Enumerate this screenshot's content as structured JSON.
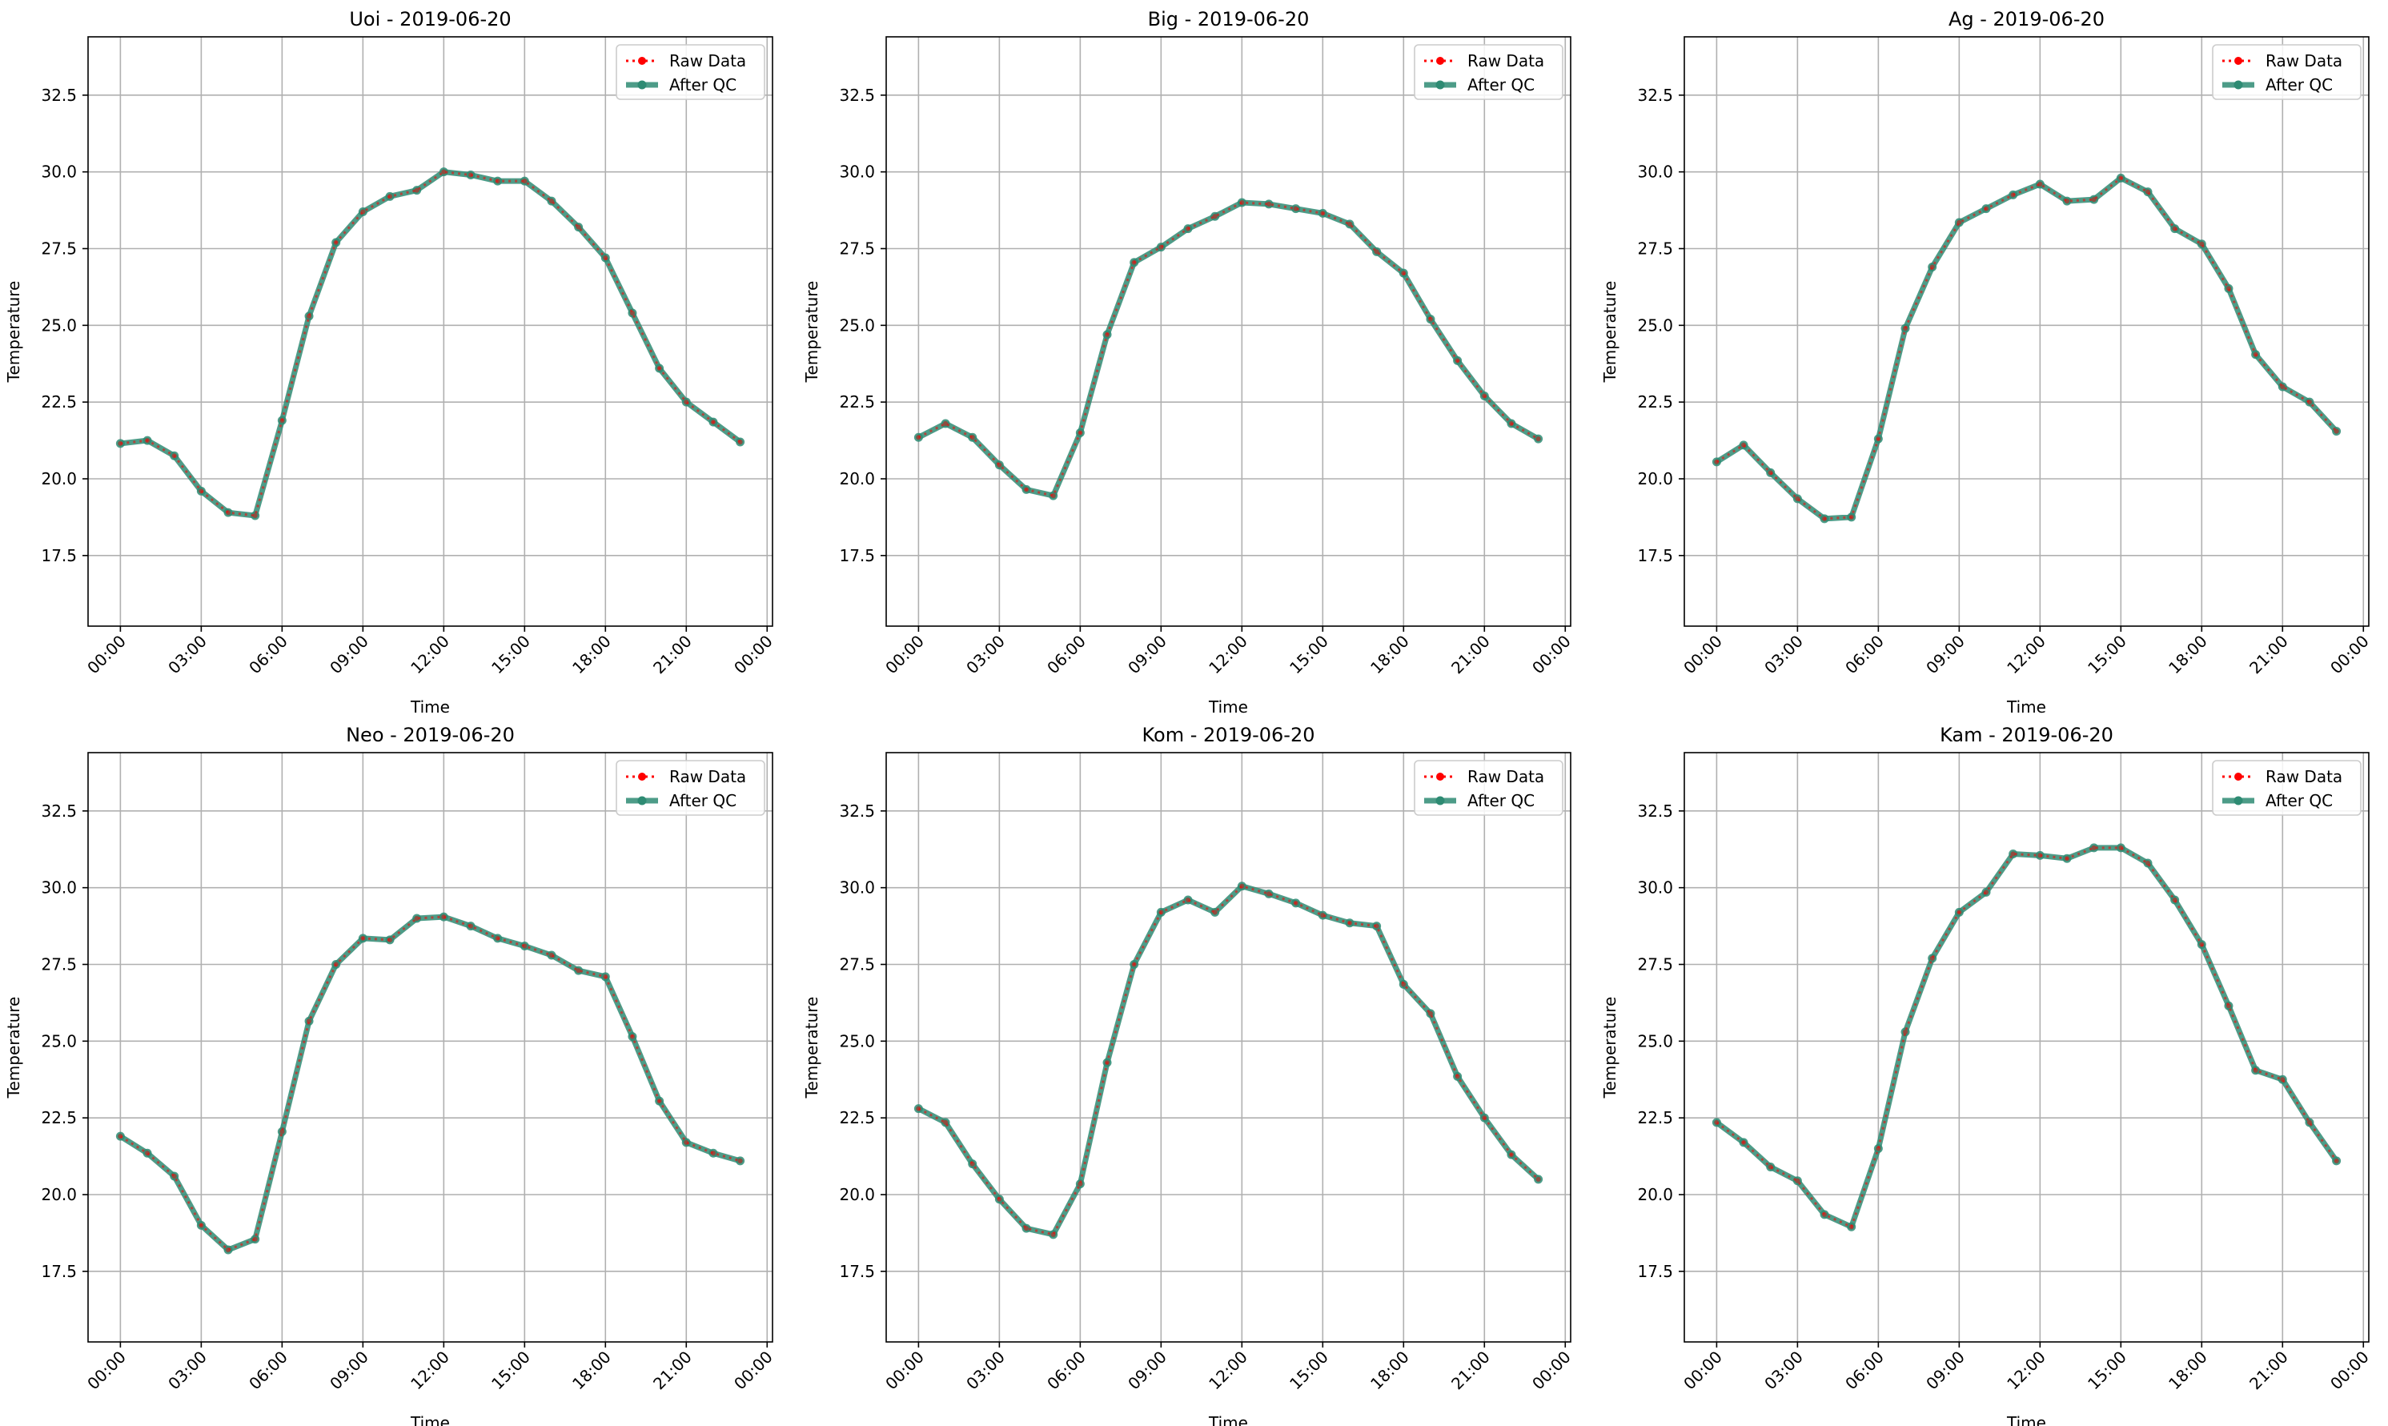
{
  "figure": {
    "background": "#ffffff"
  },
  "legend": {
    "raw_label": "Raw Data",
    "qc_label": "After QC",
    "placement": "top-right"
  },
  "colors": {
    "raw": "#ff0000",
    "qc": "#2e8b73",
    "grid": "#b0b0b0",
    "axis": "#000000",
    "text": "#000000"
  },
  "axes_common": {
    "xlabel": "Time",
    "ylabel": "Temperature",
    "ylim": [
      15.2,
      34.4
    ],
    "yticks": [
      17.5,
      20.0,
      22.5,
      25.0,
      27.5,
      30.0,
      32.5
    ],
    "xlim": [
      -1.2,
      24.2
    ],
    "xticks": [
      0,
      3,
      6,
      9,
      12,
      15,
      18,
      21,
      24
    ],
    "xtick_labels": [
      "00:00",
      "03:00",
      "06:00",
      "09:00",
      "12:00",
      "15:00",
      "18:00",
      "21:00",
      "00:00"
    ],
    "grid": true
  },
  "chart_data": [
    {
      "type": "line",
      "title": "Uoi - 2019-06-20",
      "xlabel": "Time",
      "ylabel": "Temperature",
      "x": [
        0,
        1,
        2,
        3,
        4,
        5,
        6,
        7,
        8,
        9,
        10,
        11,
        12,
        13,
        14,
        15,
        16,
        17,
        18,
        19,
        20,
        21,
        22,
        23
      ],
      "series": [
        {
          "name": "Raw Data",
          "values": [
            21.15,
            21.25,
            20.75,
            19.6,
            18.9,
            18.8,
            21.9,
            25.3,
            27.7,
            28.7,
            29.2,
            29.4,
            30.0,
            29.9,
            29.7,
            29.7,
            29.05,
            28.2,
            27.2,
            25.4,
            23.6,
            22.5,
            21.85,
            21.2
          ]
        },
        {
          "name": "After QC",
          "values": [
            21.15,
            21.25,
            20.75,
            19.6,
            18.9,
            18.8,
            21.9,
            25.3,
            27.7,
            28.7,
            29.2,
            29.4,
            30.0,
            29.9,
            29.7,
            29.7,
            29.05,
            28.2,
            27.2,
            25.4,
            23.6,
            22.5,
            21.85,
            21.2
          ]
        }
      ]
    },
    {
      "type": "line",
      "title": "Big - 2019-06-20",
      "xlabel": "Time",
      "ylabel": "Temperature",
      "x": [
        0,
        1,
        2,
        3,
        4,
        5,
        6,
        7,
        8,
        9,
        10,
        11,
        12,
        13,
        14,
        15,
        16,
        17,
        18,
        19,
        20,
        21,
        22,
        23
      ],
      "series": [
        {
          "name": "Raw Data",
          "values": [
            21.35,
            21.8,
            21.35,
            20.45,
            19.65,
            19.45,
            21.5,
            24.7,
            27.05,
            27.55,
            28.15,
            28.55,
            29.0,
            28.95,
            28.8,
            28.65,
            28.3,
            27.4,
            26.7,
            25.2,
            23.85,
            22.7,
            21.8,
            21.3
          ]
        },
        {
          "name": "After QC",
          "values": [
            21.35,
            21.8,
            21.35,
            20.45,
            19.65,
            19.45,
            21.5,
            24.7,
            27.05,
            27.55,
            28.15,
            28.55,
            29.0,
            28.95,
            28.8,
            28.65,
            28.3,
            27.4,
            26.7,
            25.2,
            23.85,
            22.7,
            21.8,
            21.3
          ]
        }
      ]
    },
    {
      "type": "line",
      "title": "Ag - 2019-06-20",
      "xlabel": "Time",
      "ylabel": "Temperature",
      "x": [
        0,
        1,
        2,
        3,
        4,
        5,
        6,
        7,
        8,
        9,
        10,
        11,
        12,
        13,
        14,
        15,
        16,
        17,
        18,
        19,
        20,
        21,
        22,
        23
      ],
      "series": [
        {
          "name": "Raw Data",
          "values": [
            20.55,
            21.1,
            20.2,
            19.35,
            18.7,
            18.75,
            21.3,
            24.9,
            26.9,
            28.35,
            28.8,
            29.25,
            29.6,
            29.05,
            29.1,
            29.8,
            29.35,
            28.15,
            27.65,
            26.2,
            24.05,
            23.0,
            22.5,
            21.55
          ]
        },
        {
          "name": "After QC",
          "values": [
            20.55,
            21.1,
            20.2,
            19.35,
            18.7,
            18.75,
            21.3,
            24.9,
            26.9,
            28.35,
            28.8,
            29.25,
            29.6,
            29.05,
            29.1,
            29.8,
            29.35,
            28.15,
            27.65,
            26.2,
            24.05,
            23.0,
            22.5,
            21.55
          ]
        }
      ]
    },
    {
      "type": "line",
      "title": "Neo - 2019-06-20",
      "xlabel": "Time",
      "ylabel": "Temperature",
      "x": [
        0,
        1,
        2,
        3,
        4,
        5,
        6,
        7,
        8,
        9,
        10,
        11,
        12,
        13,
        14,
        15,
        16,
        17,
        18,
        19,
        20,
        21,
        22,
        23
      ],
      "series": [
        {
          "name": "Raw Data",
          "values": [
            21.9,
            21.35,
            20.6,
            19.0,
            18.2,
            18.55,
            22.05,
            25.65,
            27.5,
            28.35,
            28.3,
            29.0,
            29.05,
            28.75,
            28.35,
            28.1,
            27.8,
            27.3,
            27.1,
            25.15,
            23.05,
            21.7,
            21.35,
            21.1
          ]
        },
        {
          "name": "After QC",
          "values": [
            21.9,
            21.35,
            20.6,
            19.0,
            18.2,
            18.55,
            22.05,
            25.65,
            27.5,
            28.35,
            28.3,
            29.0,
            29.05,
            28.75,
            28.35,
            28.1,
            27.8,
            27.3,
            27.1,
            25.15,
            23.05,
            21.7,
            21.35,
            21.1
          ]
        }
      ]
    },
    {
      "type": "line",
      "title": "Kom - 2019-06-20",
      "xlabel": "Time",
      "ylabel": "Temperature",
      "x": [
        0,
        1,
        2,
        3,
        4,
        5,
        6,
        7,
        8,
        9,
        10,
        11,
        12,
        13,
        14,
        15,
        16,
        17,
        18,
        19,
        20,
        21,
        22,
        23
      ],
      "series": [
        {
          "name": "Raw Data",
          "values": [
            22.8,
            22.35,
            21.0,
            19.85,
            18.9,
            18.7,
            20.35,
            24.3,
            27.5,
            29.2,
            29.6,
            29.2,
            30.05,
            29.8,
            29.5,
            29.1,
            28.85,
            28.75,
            26.85,
            25.9,
            23.85,
            22.5,
            21.3,
            20.5
          ]
        },
        {
          "name": "After QC",
          "values": [
            22.8,
            22.35,
            21.0,
            19.85,
            18.9,
            18.7,
            20.35,
            24.3,
            27.5,
            29.2,
            29.6,
            29.2,
            30.05,
            29.8,
            29.5,
            29.1,
            28.85,
            28.75,
            26.85,
            25.9,
            23.85,
            22.5,
            21.3,
            20.5
          ]
        }
      ]
    },
    {
      "type": "line",
      "title": "Kam - 2019-06-20",
      "xlabel": "Time",
      "ylabel": "Temperature",
      "x": [
        0,
        1,
        2,
        3,
        4,
        5,
        6,
        7,
        8,
        9,
        10,
        11,
        12,
        13,
        14,
        15,
        16,
        17,
        18,
        19,
        20,
        21,
        22,
        23
      ],
      "series": [
        {
          "name": "Raw Data",
          "values": [
            22.35,
            21.7,
            20.9,
            20.45,
            19.35,
            18.95,
            21.5,
            25.3,
            27.7,
            29.2,
            29.85,
            31.1,
            31.05,
            30.95,
            31.3,
            31.3,
            30.8,
            29.6,
            28.15,
            26.15,
            24.05,
            23.75,
            22.35,
            21.1
          ]
        },
        {
          "name": "After QC",
          "values": [
            22.35,
            21.7,
            20.9,
            20.45,
            19.35,
            18.95,
            21.5,
            25.3,
            27.7,
            29.2,
            29.85,
            31.1,
            31.05,
            30.95,
            31.3,
            31.3,
            30.8,
            29.6,
            28.15,
            26.15,
            24.05,
            23.75,
            22.35,
            21.1
          ]
        }
      ]
    }
  ]
}
